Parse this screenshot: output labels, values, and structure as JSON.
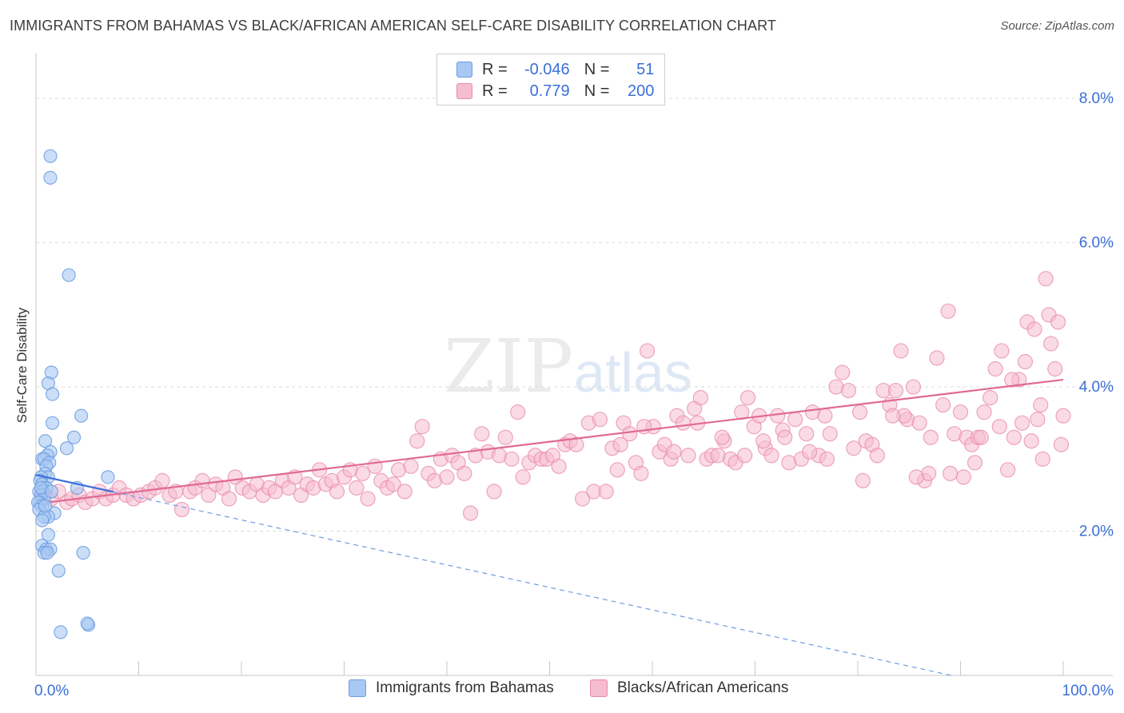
{
  "header": {
    "title": "IMMIGRANTS FROM BAHAMAS VS BLACK/AFRICAN AMERICAN SELF-CARE DISABILITY CORRELATION CHART",
    "source": "Source: ZipAtlas.com"
  },
  "watermark": {
    "zip": "ZIP",
    "atlas": "atlas"
  },
  "legend": {
    "rows": [
      {
        "r_label": "R =",
        "r_value": "-0.046",
        "n_label": "N =",
        "n_value": "51",
        "color": "#a8c8f4",
        "border": "#6d9de0"
      },
      {
        "r_label": "R =",
        "r_value": "0.779",
        "n_label": "N =",
        "n_value": "200",
        "color": "#f6bccf",
        "border": "#e88aa8"
      }
    ]
  },
  "bottom_legend": {
    "series_a": "Immigrants from Bahamas",
    "series_b": "Blacks/African Americans"
  },
  "chart_data": {
    "type": "scatter",
    "title": "IMMIGRANTS FROM BAHAMAS VS BLACK/AFRICAN AMERICAN SELF-CARE DISABILITY CORRELATION CHART",
    "xlabel": "",
    "ylabel": "Self-Care Disability",
    "xlim": [
      0,
      100
    ],
    "ylim": [
      0,
      8.5
    ],
    "x_tick_labels": [
      "0.0%",
      "100.0%"
    ],
    "y_ticks": [
      2,
      4,
      6,
      8
    ],
    "y_tick_labels": [
      "2.0%",
      "4.0%",
      "6.0%",
      "8.0%"
    ],
    "grid": true,
    "legend_position": "top-center",
    "colors": {
      "bahamas": "#6d9de0",
      "bahamas_fill": "#a8c8f4",
      "black": "#e88aa8",
      "black_fill": "#f6bccf",
      "axis_label": "#3a6fd8"
    },
    "series": [
      {
        "name": "Immigrants from Bahamas",
        "r": -0.046,
        "n": 51,
        "points": [
          [
            1.4,
            7.2
          ],
          [
            1.4,
            6.9
          ],
          [
            3.2,
            5.55
          ],
          [
            1.5,
            4.2
          ],
          [
            1.2,
            4.05
          ],
          [
            1.6,
            3.9
          ],
          [
            4.4,
            3.6
          ],
          [
            1.6,
            3.5
          ],
          [
            3.7,
            3.3
          ],
          [
            0.9,
            3.25
          ],
          [
            3.0,
            3.15
          ],
          [
            1.4,
            3.1
          ],
          [
            1.1,
            3.05
          ],
          [
            0.6,
            3.0
          ],
          [
            0.8,
            3.0
          ],
          [
            1.3,
            2.95
          ],
          [
            1.0,
            2.9
          ],
          [
            0.9,
            2.8
          ],
          [
            1.2,
            2.75
          ],
          [
            0.5,
            2.75
          ],
          [
            7.0,
            2.75
          ],
          [
            0.4,
            2.7
          ],
          [
            0.6,
            2.65
          ],
          [
            1.0,
            2.6
          ],
          [
            4.0,
            2.6
          ],
          [
            0.3,
            2.55
          ],
          [
            0.7,
            2.55
          ],
          [
            0.5,
            2.5
          ],
          [
            0.8,
            2.45
          ],
          [
            0.4,
            2.4
          ],
          [
            0.2,
            2.4
          ],
          [
            0.6,
            2.35
          ],
          [
            0.3,
            2.3
          ],
          [
            1.8,
            2.25
          ],
          [
            1.2,
            2.2
          ],
          [
            0.8,
            2.2
          ],
          [
            0.6,
            2.15
          ],
          [
            1.2,
            1.95
          ],
          [
            0.6,
            1.8
          ],
          [
            1.0,
            1.75
          ],
          [
            1.4,
            1.75
          ],
          [
            0.8,
            1.7
          ],
          [
            1.1,
            1.7
          ],
          [
            4.6,
            1.7
          ],
          [
            2.2,
            1.45
          ],
          [
            5.1,
            0.7
          ],
          [
            5.0,
            0.72
          ],
          [
            2.4,
            0.6
          ],
          [
            0.5,
            2.6
          ],
          [
            0.9,
            2.35
          ],
          [
            1.5,
            2.55
          ]
        ],
        "trend": {
          "x0": 0,
          "y0": 2.78,
          "x1": 100,
          "y1": -0.34,
          "solid_until_x": 7.5
        }
      },
      {
        "name": "Blacks/African Americans",
        "r": 0.779,
        "n": 200,
        "points": [
          [
            0.8,
            2.5
          ],
          [
            1.5,
            2.45
          ],
          [
            2.2,
            2.55
          ],
          [
            3.0,
            2.4
          ],
          [
            3.5,
            2.45
          ],
          [
            4.2,
            2.5
          ],
          [
            4.8,
            2.4
          ],
          [
            5.5,
            2.45
          ],
          [
            6.2,
            2.55
          ],
          [
            6.8,
            2.45
          ],
          [
            7.5,
            2.5
          ],
          [
            8.1,
            2.6
          ],
          [
            8.8,
            2.5
          ],
          [
            9.5,
            2.45
          ],
          [
            10.2,
            2.5
          ],
          [
            11.0,
            2.55
          ],
          [
            11.6,
            2.6
          ],
          [
            12.3,
            2.7
          ],
          [
            13.0,
            2.5
          ],
          [
            13.6,
            2.55
          ],
          [
            14.2,
            2.3
          ],
          [
            15.0,
            2.55
          ],
          [
            15.5,
            2.6
          ],
          [
            16.2,
            2.7
          ],
          [
            16.8,
            2.5
          ],
          [
            17.5,
            2.65
          ],
          [
            18.2,
            2.6
          ],
          [
            18.8,
            2.45
          ],
          [
            19.4,
            2.75
          ],
          [
            20.1,
            2.6
          ],
          [
            20.8,
            2.55
          ],
          [
            21.5,
            2.65
          ],
          [
            22.1,
            2.5
          ],
          [
            22.7,
            2.6
          ],
          [
            23.3,
            2.55
          ],
          [
            24.0,
            2.7
          ],
          [
            24.6,
            2.6
          ],
          [
            25.2,
            2.75
          ],
          [
            25.8,
            2.5
          ],
          [
            26.4,
            2.65
          ],
          [
            27.0,
            2.6
          ],
          [
            27.6,
            2.85
          ],
          [
            28.2,
            2.65
          ],
          [
            28.8,
            2.7
          ],
          [
            29.3,
            2.55
          ],
          [
            30.0,
            2.75
          ],
          [
            30.6,
            2.85
          ],
          [
            31.2,
            2.6
          ],
          [
            31.8,
            2.8
          ],
          [
            32.3,
            2.45
          ],
          [
            33.0,
            2.9
          ],
          [
            33.6,
            2.7
          ],
          [
            34.2,
            2.6
          ],
          [
            34.8,
            2.65
          ],
          [
            35.3,
            2.85
          ],
          [
            35.9,
            2.55
          ],
          [
            36.5,
            2.9
          ],
          [
            37.1,
            3.25
          ],
          [
            37.6,
            3.45
          ],
          [
            38.2,
            2.8
          ],
          [
            38.8,
            2.7
          ],
          [
            39.4,
            3.0
          ],
          [
            40.0,
            2.75
          ],
          [
            40.5,
            3.05
          ],
          [
            41.1,
            2.95
          ],
          [
            41.7,
            2.8
          ],
          [
            42.3,
            2.25
          ],
          [
            42.8,
            3.05
          ],
          [
            43.4,
            3.35
          ],
          [
            44.0,
            3.1
          ],
          [
            44.6,
            2.55
          ],
          [
            45.1,
            3.05
          ],
          [
            45.7,
            3.3
          ],
          [
            46.3,
            3.0
          ],
          [
            46.9,
            3.65
          ],
          [
            47.4,
            2.75
          ],
          [
            48.0,
            2.95
          ],
          [
            48.6,
            3.05
          ],
          [
            49.2,
            3.0
          ],
          [
            49.7,
            3.0
          ],
          [
            50.3,
            3.05
          ],
          [
            50.9,
            2.9
          ],
          [
            51.5,
            3.2
          ],
          [
            52.0,
            3.25
          ],
          [
            52.6,
            3.2
          ],
          [
            53.2,
            2.45
          ],
          [
            53.8,
            3.5
          ],
          [
            54.3,
            2.55
          ],
          [
            54.9,
            3.55
          ],
          [
            55.5,
            2.55
          ],
          [
            56.1,
            3.15
          ],
          [
            56.6,
            2.85
          ],
          [
            57.2,
            3.5
          ],
          [
            57.8,
            3.35
          ],
          [
            58.4,
            2.95
          ],
          [
            58.9,
            2.8
          ],
          [
            59.5,
            4.5
          ],
          [
            60.1,
            3.45
          ],
          [
            60.7,
            3.1
          ],
          [
            61.2,
            3.2
          ],
          [
            61.8,
            3.0
          ],
          [
            62.4,
            3.6
          ],
          [
            63.0,
            3.5
          ],
          [
            63.5,
            3.05
          ],
          [
            64.1,
            3.7
          ],
          [
            64.7,
            3.85
          ],
          [
            65.3,
            3.0
          ],
          [
            65.8,
            3.05
          ],
          [
            66.4,
            3.05
          ],
          [
            67.0,
            3.25
          ],
          [
            67.6,
            3.0
          ],
          [
            68.1,
            2.95
          ],
          [
            68.7,
            3.65
          ],
          [
            69.3,
            3.85
          ],
          [
            69.9,
            3.45
          ],
          [
            70.4,
            3.6
          ],
          [
            71.0,
            3.15
          ],
          [
            71.6,
            3.05
          ],
          [
            72.2,
            3.6
          ],
          [
            72.7,
            3.4
          ],
          [
            73.3,
            2.95
          ],
          [
            73.9,
            3.55
          ],
          [
            74.5,
            3.0
          ],
          [
            75.0,
            3.35
          ],
          [
            75.6,
            3.65
          ],
          [
            76.2,
            3.05
          ],
          [
            76.8,
            3.6
          ],
          [
            77.3,
            3.35
          ],
          [
            77.9,
            4.0
          ],
          [
            78.5,
            4.2
          ],
          [
            79.1,
            3.95
          ],
          [
            79.6,
            3.15
          ],
          [
            80.2,
            3.65
          ],
          [
            80.8,
            3.25
          ],
          [
            81.4,
            3.2
          ],
          [
            81.9,
            3.05
          ],
          [
            82.5,
            3.95
          ],
          [
            83.1,
            3.75
          ],
          [
            83.7,
            3.95
          ],
          [
            84.2,
            4.5
          ],
          [
            84.8,
            3.55
          ],
          [
            85.4,
            4.0
          ],
          [
            86.0,
            3.5
          ],
          [
            86.5,
            2.7
          ],
          [
            87.1,
            3.3
          ],
          [
            87.7,
            4.4
          ],
          [
            88.3,
            3.75
          ],
          [
            88.8,
            5.05
          ],
          [
            89.4,
            3.35
          ],
          [
            90.0,
            3.65
          ],
          [
            90.6,
            3.3
          ],
          [
            91.1,
            3.2
          ],
          [
            91.7,
            3.3
          ],
          [
            92.3,
            3.65
          ],
          [
            92.9,
            3.85
          ],
          [
            93.4,
            4.25
          ],
          [
            94.0,
            4.5
          ],
          [
            94.6,
            2.85
          ],
          [
            95.2,
            3.3
          ],
          [
            95.7,
            4.1
          ],
          [
            96.3,
            4.35
          ],
          [
            96.9,
            3.25
          ],
          [
            97.5,
            3.55
          ],
          [
            98.0,
            3.0
          ],
          [
            98.6,
            5.0
          ],
          [
            99.2,
            4.25
          ],
          [
            99.8,
            3.2
          ],
          [
            100.0,
            3.6
          ],
          [
            96.5,
            4.9
          ],
          [
            97.2,
            4.8
          ],
          [
            98.3,
            5.5
          ],
          [
            98.8,
            4.6
          ],
          [
            99.5,
            4.9
          ],
          [
            97.8,
            3.75
          ],
          [
            95.0,
            4.1
          ],
          [
            96.0,
            3.5
          ],
          [
            93.8,
            3.45
          ],
          [
            92.0,
            3.3
          ],
          [
            91.4,
            2.95
          ],
          [
            90.3,
            2.75
          ],
          [
            89.0,
            2.8
          ],
          [
            86.9,
            2.8
          ],
          [
            85.7,
            2.75
          ],
          [
            84.5,
            3.6
          ],
          [
            83.4,
            3.6
          ],
          [
            80.5,
            2.7
          ],
          [
            77.0,
            3.0
          ],
          [
            75.3,
            3.1
          ],
          [
            72.9,
            3.3
          ],
          [
            70.8,
            3.25
          ],
          [
            69.0,
            3.05
          ],
          [
            66.8,
            3.3
          ],
          [
            64.4,
            3.5
          ],
          [
            62.1,
            3.1
          ],
          [
            59.2,
            3.45
          ],
          [
            56.9,
            3.2
          ]
        ],
        "trend": {
          "x0": 0,
          "y0": 2.38,
          "x1": 100,
          "y1": 4.1
        }
      }
    ]
  }
}
